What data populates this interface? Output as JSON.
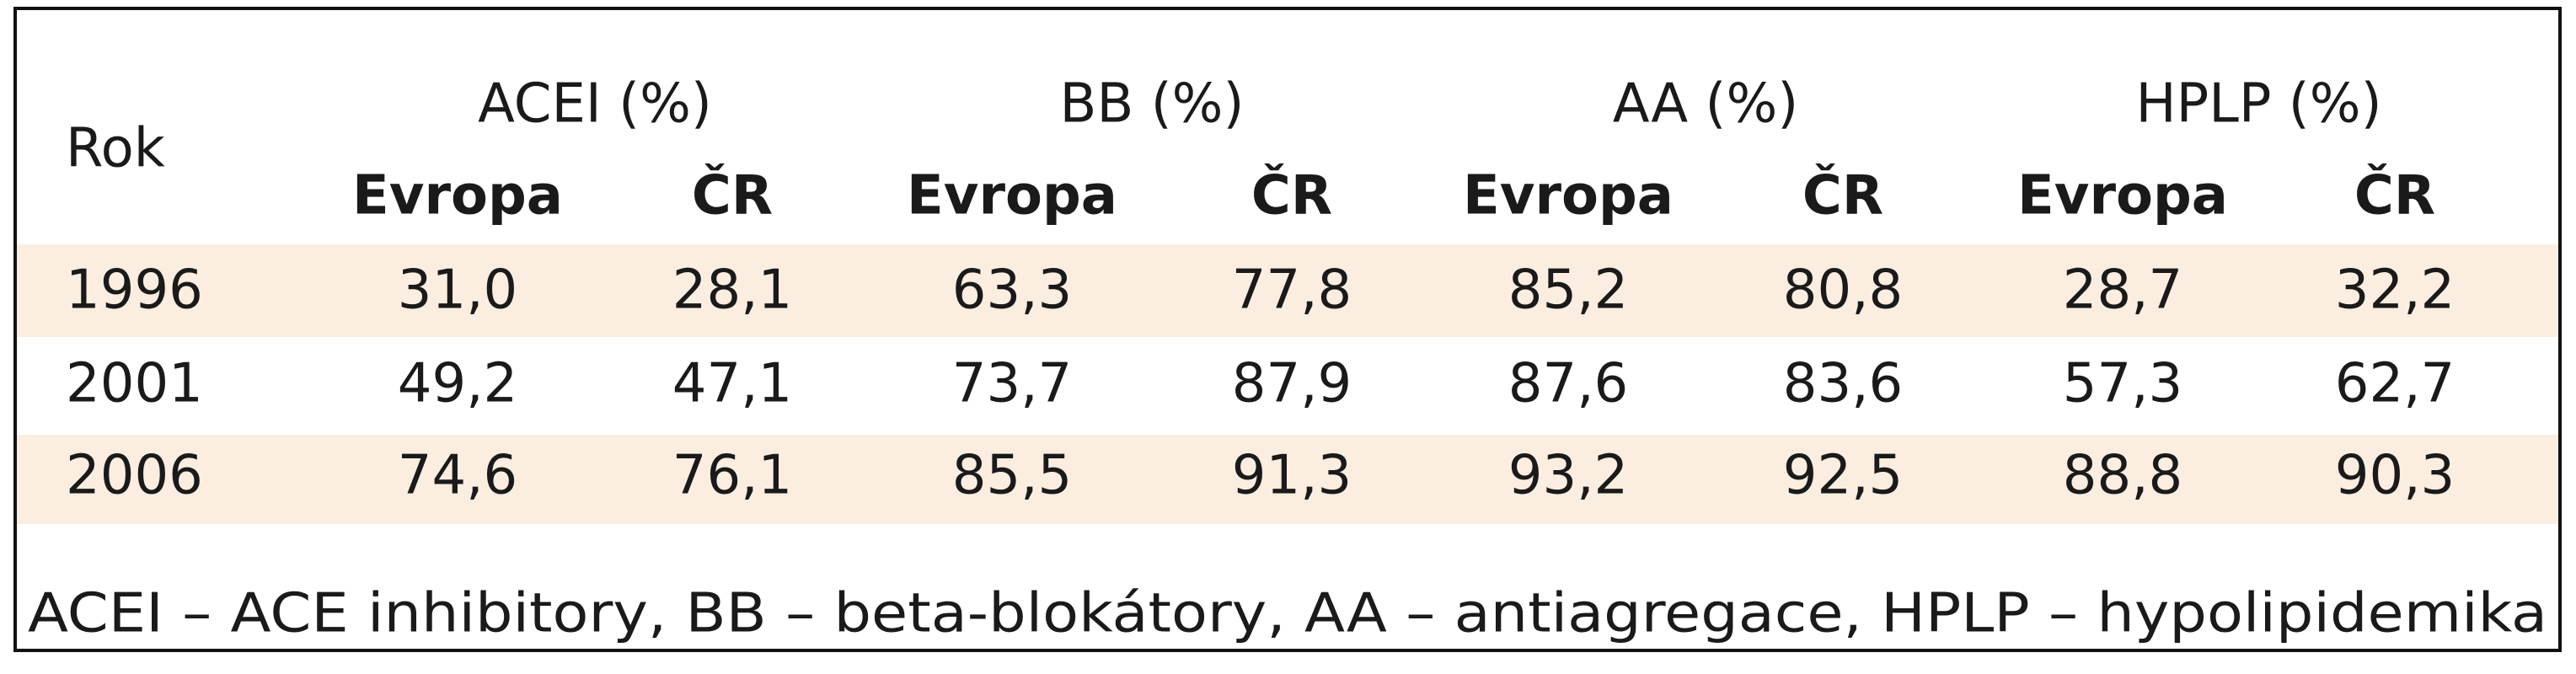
{
  "table": {
    "corner": "Rok",
    "groups": [
      "ACEI (%)",
      "BB (%)",
      "AA (%)",
      "HPLP (%)"
    ],
    "subheaders": [
      "Evropa",
      "ČR",
      "Evropa",
      "ČR",
      "Evropa",
      "ČR",
      "Evropa",
      "ČR"
    ],
    "rows": [
      [
        "1996",
        "31,0",
        "28,1",
        "63,3",
        "77,8",
        "85,2",
        "80,8",
        "28,7",
        "32,2"
      ],
      [
        "2001",
        "49,2",
        "47,1",
        "73,7",
        "87,9",
        "87,6",
        "83,6",
        "57,3",
        "62,7"
      ],
      [
        "2006",
        "74,6",
        "76,1",
        "85,5",
        "91,3",
        "93,2",
        "92,5",
        "88,8",
        "90,3"
      ]
    ]
  },
  "footnote": "ACEI – ACE inhibitory, BB – beta-blokátory, AA – antiagregace, HPLP – hypolipidemika"
}
